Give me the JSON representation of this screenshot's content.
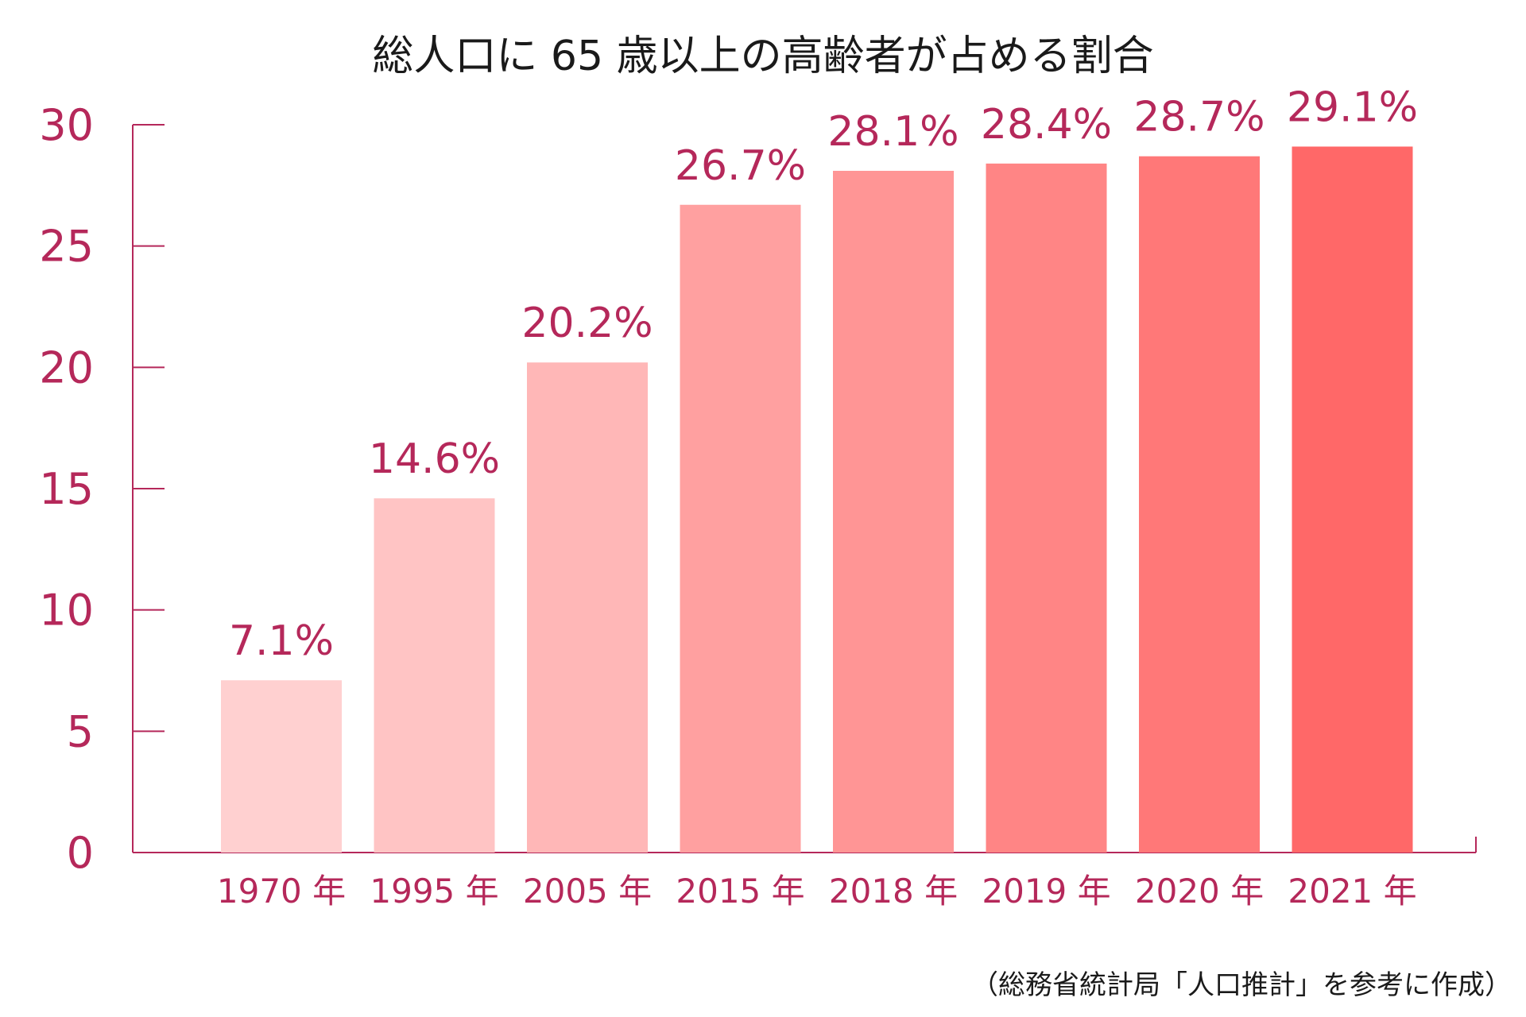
{
  "title": "総人口に 65 歳以上の高齢者が占める割合",
  "source_note": "（総務省統計局「人口推計」を参考に作成）",
  "colors": {
    "axis": "#b5285a",
    "label": "#b5285a",
    "bars": [
      "#ffd0d0",
      "#ffc4c4",
      "#ffb7b7",
      "#ffa0a0",
      "#ff9595",
      "#ff8585",
      "#ff7878",
      "#ff6868"
    ]
  },
  "chart_data": {
    "type": "bar",
    "categories": [
      "1970 年",
      "1995 年",
      "2005 年",
      "2015 年",
      "2018 年",
      "2019 年",
      "2020 年",
      "2021 年"
    ],
    "values": [
      7.1,
      14.6,
      20.2,
      26.7,
      28.1,
      28.4,
      28.7,
      29.1
    ],
    "data_labels": [
      "7.1%",
      "14.6%",
      "20.2%",
      "26.7%",
      "28.1%",
      "28.4%",
      "28.7%",
      "29.1%"
    ],
    "title": "総人口に 65 歳以上の高齢者が占める割合",
    "xlabel": "",
    "ylabel": "",
    "ylim": [
      0,
      30
    ],
    "yticks": [
      0,
      5,
      10,
      15,
      20,
      25,
      30
    ],
    "grid": false,
    "legend": "none"
  }
}
